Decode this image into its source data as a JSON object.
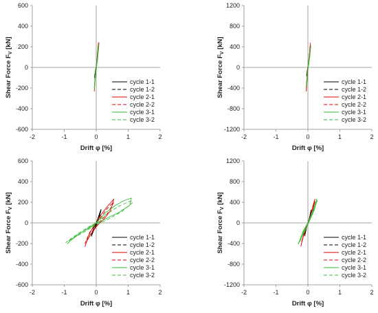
{
  "chart_data": [
    {
      "type": "line",
      "xlabel": "Drift φ [%]",
      "ylabel_main": "Shear Force F",
      "ylabel_sub": "V",
      "ylabel_unit": " [kN]",
      "xlim": [
        -2,
        2
      ],
      "ylim": [
        -600,
        600
      ],
      "xticks": [
        "-2",
        "-1",
        "0",
        "1",
        "2"
      ],
      "yticks": [
        "600",
        "400",
        "200",
        "0",
        "-200",
        "-400",
        "-600"
      ],
      "legend": "right",
      "series": [
        {
          "name": "cycle 1-1",
          "color": "#000000",
          "dash": "solid",
          "x": [
            0,
            0.02,
            0.04,
            0.05,
            0.03,
            0.0,
            -0.02,
            -0.04,
            -0.05,
            -0.02,
            0
          ],
          "y": [
            0,
            40,
            80,
            110,
            60,
            10,
            -30,
            -70,
            -100,
            -40,
            0
          ]
        },
        {
          "name": "cycle 1-2",
          "color": "#000000",
          "dash": "dashed",
          "x": [
            0,
            0.02,
            0.04,
            0.05,
            0.02,
            -0.01,
            -0.03,
            -0.05,
            -0.02,
            0
          ],
          "y": [
            0,
            45,
            85,
            100,
            50,
            0,
            -50,
            -95,
            -40,
            0
          ]
        },
        {
          "name": "cycle 2-1",
          "color": "#e00000",
          "dash": "solid",
          "x": [
            0,
            0.02,
            0.05,
            0.07,
            0.05,
            0.01,
            -0.02,
            -0.05,
            -0.06,
            -0.03,
            0
          ],
          "y": [
            0,
            70,
            170,
            240,
            120,
            20,
            -60,
            -170,
            -230,
            -90,
            0
          ]
        },
        {
          "name": "cycle 2-2",
          "color": "#e00000",
          "dash": "dashed",
          "x": [
            0,
            0.03,
            0.06,
            0.04,
            0.0,
            -0.03,
            -0.06,
            -0.03,
            0
          ],
          "y": [
            0,
            90,
            210,
            100,
            10,
            -90,
            -200,
            -80,
            0
          ]
        },
        {
          "name": "cycle 3-1",
          "color": "#33bb33",
          "dash": "solid",
          "x": [
            0,
            0.04,
            0.07,
            0.09,
            0.06,
            0.02,
            -0.02,
            -0.05,
            -0.06,
            -0.02,
            0
          ],
          "y": [
            0,
            110,
            200,
            240,
            140,
            30,
            -60,
            -160,
            -210,
            -80,
            0
          ]
        },
        {
          "name": "cycle 3-2",
          "color": "#33bb33",
          "dash": "dashed",
          "x": [
            0,
            0.04,
            0.08,
            0.05,
            0.01,
            -0.03,
            -0.06,
            -0.03,
            0
          ],
          "y": [
            0,
            100,
            210,
            110,
            0,
            -100,
            -190,
            -70,
            0
          ]
        }
      ]
    },
    {
      "type": "line",
      "xlabel": "Drift φ [%]",
      "ylabel_main": "Shear Force F",
      "ylabel_sub": "V",
      "ylabel_unit": " [kN]",
      "xlim": [
        -2,
        2
      ],
      "ylim": [
        -1200,
        1200
      ],
      "xticks": [
        "-2",
        "-1",
        "0",
        "1",
        "2"
      ],
      "yticks": [
        "1200",
        "800",
        "400",
        "0",
        "-400",
        "-800",
        "-1200"
      ],
      "legend": "right",
      "series": [
        {
          "name": "cycle 1-1",
          "color": "#000000",
          "dash": "solid",
          "x": [
            0,
            0.02,
            0.04,
            0.03,
            0.0,
            -0.02,
            -0.04,
            -0.02,
            0
          ],
          "y": [
            0,
            80,
            160,
            80,
            0,
            -80,
            -160,
            -60,
            0
          ]
        },
        {
          "name": "cycle 1-2",
          "color": "#000000",
          "dash": "dashed",
          "x": [
            0,
            0.02,
            0.04,
            0.02,
            -0.01,
            -0.03,
            -0.01,
            0
          ],
          "y": [
            0,
            90,
            170,
            70,
            -20,
            -150,
            -50,
            0
          ]
        },
        {
          "name": "cycle 2-1",
          "color": "#e00000",
          "dash": "solid",
          "x": [
            0,
            0.03,
            0.06,
            0.08,
            0.05,
            0.01,
            -0.02,
            -0.04,
            -0.05,
            -0.02,
            0
          ],
          "y": [
            0,
            150,
            330,
            470,
            250,
            40,
            -120,
            -300,
            -460,
            -180,
            0
          ]
        },
        {
          "name": "cycle 2-2",
          "color": "#e00000",
          "dash": "dashed",
          "x": [
            0,
            0.03,
            0.07,
            0.04,
            0.0,
            -0.03,
            -0.05,
            -0.02,
            0
          ],
          "y": [
            0,
            160,
            420,
            200,
            0,
            -190,
            -400,
            -160,
            0
          ]
        },
        {
          "name": "cycle 3-1",
          "color": "#33bb33",
          "dash": "solid",
          "x": [
            0,
            0.04,
            0.07,
            0.09,
            0.06,
            0.02,
            -0.01,
            -0.03,
            -0.04,
            -0.01,
            0
          ],
          "y": [
            0,
            170,
            330,
            420,
            220,
            40,
            -100,
            -260,
            -380,
            -140,
            0
          ]
        },
        {
          "name": "cycle 3-2",
          "color": "#33bb33",
          "dash": "dashed",
          "x": [
            0,
            0.04,
            0.08,
            0.05,
            0.01,
            -0.02,
            -0.04,
            -0.01,
            0
          ],
          "y": [
            0,
            160,
            380,
            180,
            0,
            -150,
            -330,
            -120,
            0
          ]
        }
      ]
    },
    {
      "type": "line",
      "xlabel": "Drift φ [%]",
      "ylabel_main": "Shear Force F",
      "ylabel_sub": "V",
      "ylabel_unit": " [kN]",
      "xlim": [
        -2,
        2
      ],
      "ylim": [
        -600,
        600
      ],
      "xticks": [
        "-2",
        "-1",
        "0",
        "1",
        "2"
      ],
      "yticks": [
        "600",
        "400",
        "200",
        "0",
        "-200",
        "-400",
        "-600"
      ],
      "legend": "right",
      "series": [
        {
          "name": "cycle 1-1",
          "color": "#000000",
          "dash": "solid",
          "x": [
            0,
            0.05,
            0.1,
            0.15,
            0.1,
            0.03,
            -0.03,
            -0.1,
            -0.15,
            -0.08,
            0
          ],
          "y": [
            0,
            40,
            90,
            130,
            60,
            0,
            -40,
            -90,
            -130,
            -50,
            0
          ]
        },
        {
          "name": "cycle 1-2",
          "color": "#000000",
          "dash": "dashed",
          "x": [
            0,
            0.06,
            0.12,
            0.15,
            0.08,
            0.0,
            -0.06,
            -0.12,
            -0.15,
            -0.06,
            0
          ],
          "y": [
            0,
            45,
            95,
            120,
            40,
            -10,
            -50,
            -100,
            -120,
            -30,
            0
          ]
        },
        {
          "name": "cycle 2-1",
          "color": "#e00000",
          "dash": "solid",
          "x": [
            0,
            0.15,
            0.35,
            0.55,
            0.45,
            0.25,
            0.05,
            -0.15,
            -0.3,
            -0.35,
            -0.25,
            -0.1,
            0
          ],
          "y": [
            0,
            80,
            160,
            230,
            120,
            40,
            -20,
            -100,
            -180,
            -230,
            -130,
            -40,
            0
          ]
        },
        {
          "name": "cycle 2-2",
          "color": "#e00000",
          "dash": "dashed",
          "x": [
            0,
            0.2,
            0.4,
            0.55,
            0.35,
            0.1,
            -0.1,
            -0.25,
            -0.35,
            -0.2,
            0
          ],
          "y": [
            0,
            80,
            160,
            200,
            90,
            10,
            -70,
            -150,
            -200,
            -90,
            0
          ]
        },
        {
          "name": "cycle 3-1",
          "color": "#33bb33",
          "dash": "solid",
          "x": [
            0,
            0.3,
            0.6,
            0.9,
            1.1,
            1.05,
            0.7,
            0.3,
            -0.1,
            -0.5,
            -0.8,
            -0.9,
            -0.7,
            -0.4,
            -0.1,
            0
          ],
          "y": [
            0,
            100,
            170,
            220,
            240,
            170,
            100,
            40,
            -20,
            -100,
            -170,
            -200,
            -140,
            -80,
            -30,
            0
          ]
        },
        {
          "name": "cycle 3-2",
          "color": "#33bb33",
          "dash": "dashed",
          "x": [
            0,
            0.35,
            0.7,
            1.05,
            1.15,
            0.8,
            0.4,
            0.0,
            -0.45,
            -0.85,
            -0.95,
            -0.6,
            -0.25,
            0
          ],
          "y": [
            0,
            90,
            160,
            210,
            200,
            110,
            40,
            -20,
            -100,
            -170,
            -190,
            -110,
            -40,
            0
          ]
        }
      ]
    },
    {
      "type": "line",
      "xlabel": "Drift φ [%]",
      "ylabel_main": "Shear Force F",
      "ylabel_sub": "V",
      "ylabel_unit": " [kN]",
      "xlim": [
        -2,
        2
      ],
      "ylim": [
        -1200,
        1200
      ],
      "xticks": [
        "-2",
        "-1",
        "0",
        "1",
        "2"
      ],
      "yticks": [
        "1200",
        "800",
        "400",
        "0",
        "-400",
        "-800",
        "-1200"
      ],
      "legend": "right",
      "series": [
        {
          "name": "cycle 1-1",
          "color": "#000000",
          "dash": "solid",
          "x": [
            0,
            0.04,
            0.08,
            0.1,
            0.05,
            0.0,
            -0.04,
            -0.08,
            -0.1,
            -0.04,
            0
          ],
          "y": [
            0,
            80,
            180,
            250,
            100,
            0,
            -80,
            -180,
            -250,
            -90,
            0
          ]
        },
        {
          "name": "cycle 1-2",
          "color": "#000000",
          "dash": "dashed",
          "x": [
            0,
            0.05,
            0.09,
            0.1,
            0.04,
            -0.02,
            -0.06,
            -0.1,
            -0.04,
            0
          ],
          "y": [
            0,
            90,
            190,
            230,
            70,
            -30,
            -120,
            -230,
            -80,
            0
          ]
        },
        {
          "name": "cycle 2-1",
          "color": "#e00000",
          "dash": "solid",
          "x": [
            0,
            0.07,
            0.14,
            0.22,
            0.15,
            0.05,
            -0.05,
            -0.15,
            -0.22,
            -0.12,
            0
          ],
          "y": [
            0,
            120,
            290,
            460,
            230,
            60,
            -100,
            -280,
            -450,
            -180,
            0
          ]
        },
        {
          "name": "cycle 2-2",
          "color": "#e00000",
          "dash": "dashed",
          "x": [
            0,
            0.08,
            0.16,
            0.22,
            0.12,
            0.0,
            -0.1,
            -0.2,
            -0.1,
            0
          ],
          "y": [
            0,
            130,
            300,
            410,
            180,
            0,
            -170,
            -380,
            -150,
            0
          ]
        },
        {
          "name": "cycle 3-1",
          "color": "#33bb33",
          "dash": "solid",
          "x": [
            0,
            0.08,
            0.18,
            0.28,
            0.2,
            0.08,
            -0.05,
            -0.18,
            -0.3,
            -0.15,
            0
          ],
          "y": [
            0,
            120,
            280,
            460,
            250,
            80,
            -100,
            -250,
            -410,
            -160,
            0
          ]
        },
        {
          "name": "cycle 3-2",
          "color": "#33bb33",
          "dash": "dashed",
          "x": [
            0,
            0.1,
            0.2,
            0.3,
            0.15,
            0.0,
            -0.12,
            -0.25,
            -0.12,
            0
          ],
          "y": [
            0,
            140,
            290,
            440,
            200,
            0,
            -160,
            -360,
            -140,
            0
          ]
        }
      ]
    }
  ]
}
